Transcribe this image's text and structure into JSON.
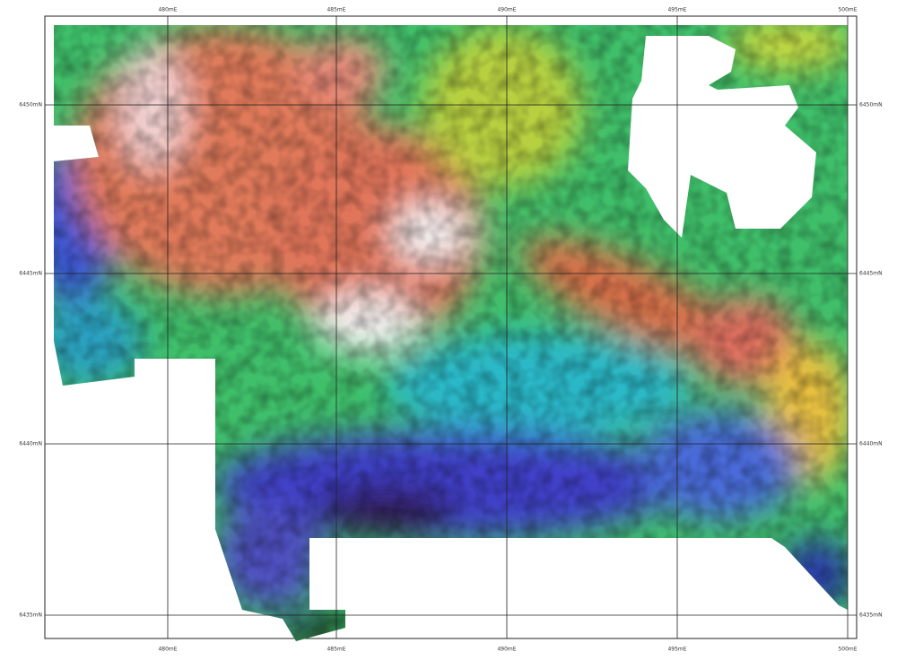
{
  "map": {
    "x_labels": [
      "480mE",
      "485mE",
      "490mE",
      "495mE",
      "500mE"
    ],
    "y_labels": [
      "6450mN",
      "6445mN",
      "6440mN",
      "6435mN"
    ]
  }
}
